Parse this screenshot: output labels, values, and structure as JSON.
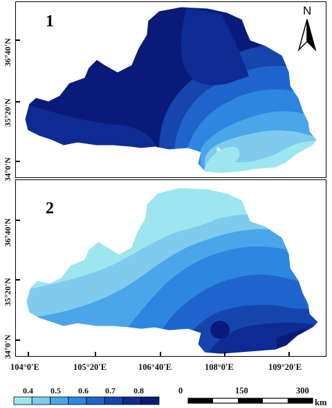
{
  "panels": [
    {
      "label": "1"
    },
    {
      "label": "2"
    }
  ],
  "lat_ticks_panel1": [
    "36°40'N",
    "35°20'N",
    "34°0'N"
  ],
  "lat_ticks_panel2": [
    "36°40'N",
    "35°20'N",
    "34°0'N"
  ],
  "lon_ticks": [
    "104°0'E",
    "105°20'E",
    "106°40'E",
    "108°0'E",
    "109°20'E"
  ],
  "north_arrow": {
    "label": "N",
    "icon": "north-arrow-icon"
  },
  "legend": {
    "values": [
      "0.4",
      "0.5",
      "0.6",
      "0.7",
      "0.8"
    ],
    "colors": [
      "#9ee6ef",
      "#7fcbee",
      "#4aa6e8",
      "#2d86df",
      "#1e64cc",
      "#1545ad",
      "#0e2a93",
      "#091a78"
    ]
  },
  "scale_bar": {
    "labels": [
      "0",
      "150",
      "300"
    ],
    "unit": "km"
  }
}
